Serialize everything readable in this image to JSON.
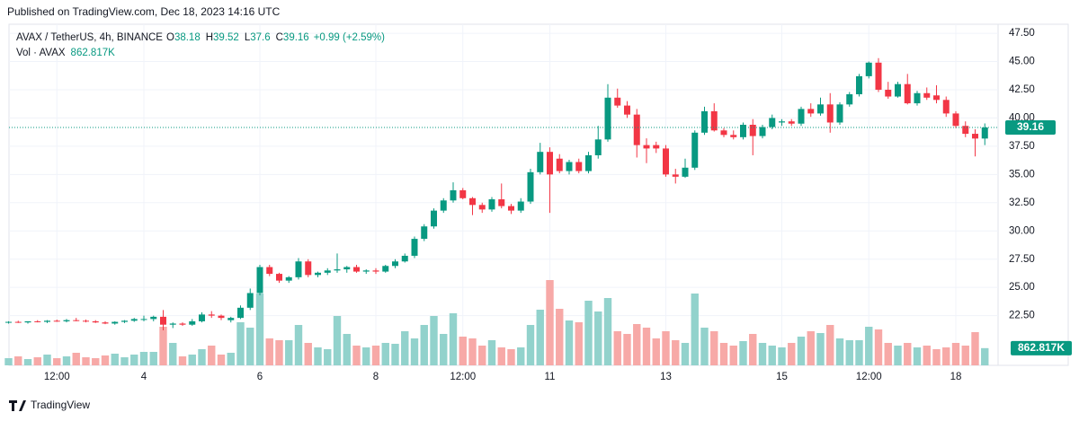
{
  "header": {
    "published": "Published on TradingView.com, Dec 18, 2023 14:16 UTC",
    "footer": "TradingView"
  },
  "chart_data": {
    "type": "candlestick",
    "symbol": "AVAX / TetherUS, 4h, BINANCE",
    "legend_labels": [
      "O",
      "H",
      "L",
      "C"
    ],
    "change_label": "+0.99 (+2.59%)",
    "volume_title": "Vol · AVAX",
    "volume_label": "862.817K",
    "categories": [
      null,
      null,
      null,
      null,
      null,
      "12:00",
      null,
      null,
      null,
      null,
      null,
      null,
      null,
      null,
      "4",
      null,
      null,
      null,
      null,
      null,
      null,
      null,
      null,
      null,
      null,
      null,
      "6",
      null,
      null,
      null,
      null,
      null,
      null,
      null,
      null,
      null,
      null,
      null,
      "8",
      null,
      null,
      null,
      null,
      null,
      null,
      null,
      null,
      "12:00",
      null,
      null,
      null,
      null,
      null,
      null,
      null,
      null,
      "11",
      null,
      null,
      null,
      null,
      null,
      null,
      null,
      null,
      null,
      null,
      null,
      "13",
      null,
      null,
      null,
      null,
      null,
      null,
      null,
      null,
      null,
      null,
      null,
      "15",
      null,
      null,
      null,
      null,
      null,
      null,
      null,
      null,
      "12:00",
      null,
      null,
      null,
      null,
      null,
      null,
      null,
      null,
      "18",
      null,
      null,
      null
    ],
    "open": [
      21.9,
      21.95,
      21.9,
      22.0,
      21.95,
      22.05,
      22.0,
      22.1,
      22.05,
      22.0,
      21.9,
      21.8,
      21.95,
      22.05,
      22.2,
      22.2,
      22.4,
      21.7,
      21.8,
      21.7,
      22.0,
      22.6,
      22.5,
      22.1,
      22.3,
      23.2,
      24.5,
      26.8,
      26.2,
      25.6,
      25.9,
      27.3,
      26.1,
      26.3,
      26.5,
      26.6,
      26.8,
      26.4,
      26.5,
      26.4,
      26.9,
      27.3,
      27.8,
      29.3,
      30.4,
      31.8,
      32.7,
      33.6,
      32.9,
      32.3,
      31.9,
      32.8,
      32.2,
      31.8,
      32.6,
      35.2,
      37.0,
      36.4,
      35.3,
      36.1,
      35.3,
      36.7,
      38.1,
      41.8,
      41.1,
      40.3,
      37.6,
      37.6,
      37.3,
      35.0,
      34.8,
      35.6,
      38.7,
      40.6,
      38.9,
      38.5,
      38.3,
      39.4,
      38.4,
      39.2,
      39.6,
      39.7,
      39.5,
      40.8,
      40.4,
      41.2,
      39.6,
      41.2,
      42.1,
      43.7,
      44.9,
      42.5,
      41.9,
      43.0,
      41.3,
      42.2,
      42.0,
      41.6,
      40.4,
      39.3,
      38.6,
      38.18
    ],
    "high": [
      22.0,
      22.05,
      22.0,
      22.1,
      22.1,
      22.15,
      22.2,
      22.3,
      22.15,
      22.1,
      22.0,
      22.0,
      22.1,
      22.3,
      22.5,
      22.5,
      23.0,
      21.9,
      21.9,
      22.2,
      22.8,
      22.9,
      22.6,
      22.4,
      23.4,
      24.9,
      27.0,
      27.0,
      26.3,
      26.0,
      27.6,
      27.5,
      26.4,
      26.7,
      28.0,
      26.9,
      27.0,
      26.6,
      26.7,
      27.0,
      27.5,
      28.0,
      29.5,
      30.6,
      32.0,
      32.9,
      34.3,
      33.8,
      33.0,
      32.5,
      33.0,
      34.2,
      32.4,
      32.9,
      35.5,
      37.8,
      37.4,
      36.8,
      36.3,
      36.4,
      37.0,
      39.3,
      43.0,
      42.6,
      41.5,
      40.8,
      38.2,
      37.9,
      37.6,
      35.5,
      36.4,
      38.9,
      41.0,
      41.3,
      39.1,
      38.9,
      39.6,
      39.9,
      39.4,
      40.3,
      39.9,
      39.9,
      41.0,
      41.3,
      41.8,
      42.2,
      41.4,
      42.3,
      43.9,
      45.0,
      45.3,
      43.2,
      43.2,
      43.9,
      42.4,
      42.7,
      42.9,
      41.9,
      40.6,
      39.7,
      39.0,
      39.52
    ],
    "low": [
      21.8,
      21.85,
      21.8,
      21.9,
      21.85,
      21.95,
      21.9,
      22.0,
      21.9,
      21.85,
      21.75,
      21.7,
      21.85,
      21.95,
      22.0,
      22.0,
      21.2,
      21.4,
      21.6,
      21.6,
      21.9,
      22.3,
      22.1,
      21.9,
      22.2,
      23.0,
      24.3,
      26.0,
      25.4,
      25.4,
      25.7,
      25.9,
      25.9,
      26.1,
      26.3,
      26.3,
      26.3,
      26.2,
      26.2,
      26.3,
      26.7,
      27.2,
      27.6,
      29.1,
      30.2,
      31.6,
      32.5,
      32.8,
      31.4,
      31.6,
      31.7,
      32.0,
      31.5,
      31.6,
      32.4,
      35.0,
      31.6,
      35.1,
      35.0,
      35.1,
      35.1,
      36.4,
      37.9,
      40.9,
      40.0,
      36.5,
      36.0,
      36.9,
      34.8,
      34.2,
      34.7,
      35.4,
      38.5,
      38.8,
      38.3,
      38.1,
      38.1,
      36.7,
      38.2,
      39.0,
      39.3,
      39.3,
      39.3,
      40.1,
      40.2,
      38.7,
      39.4,
      41.0,
      41.9,
      43.5,
      42.3,
      41.7,
      41.8,
      41.2,
      41.1,
      41.6,
      41.3,
      40.1,
      39.1,
      38.3,
      36.6,
      37.6
    ],
    "close": [
      21.95,
      21.9,
      22.0,
      21.95,
      22.05,
      22.0,
      22.1,
      22.05,
      22.0,
      21.9,
      21.8,
      21.95,
      22.05,
      22.2,
      22.2,
      22.4,
      21.7,
      21.8,
      21.7,
      22.0,
      22.6,
      22.5,
      22.3,
      22.3,
      23.2,
      24.5,
      26.8,
      26.2,
      25.6,
      25.9,
      27.3,
      26.1,
      26.3,
      26.5,
      26.6,
      26.8,
      26.4,
      26.5,
      26.4,
      26.9,
      27.3,
      27.8,
      29.3,
      30.4,
      31.8,
      32.7,
      33.6,
      32.9,
      32.3,
      31.9,
      32.8,
      32.2,
      31.8,
      32.6,
      35.2,
      37.0,
      35.0,
      35.3,
      36.1,
      35.3,
      36.7,
      38.1,
      41.8,
      41.1,
      40.3,
      37.6,
      37.3,
      37.3,
      35.0,
      34.8,
      35.6,
      38.7,
      40.6,
      38.9,
      38.5,
      38.3,
      39.4,
      38.4,
      39.2,
      40.0,
      39.7,
      39.5,
      40.8,
      40.4,
      41.2,
      39.6,
      41.2,
      42.1,
      43.7,
      44.9,
      42.5,
      41.9,
      43.0,
      41.3,
      42.2,
      41.8,
      41.6,
      40.4,
      39.3,
      38.6,
      38.18,
      39.16
    ],
    "volume": [
      360000,
      450000,
      315000,
      405000,
      540000,
      360000,
      450000,
      630000,
      405000,
      360000,
      495000,
      585000,
      405000,
      540000,
      675000,
      675000,
      1935000,
      1125000,
      450000,
      540000,
      810000,
      990000,
      540000,
      630000,
      2160000,
      1890000,
      3600000,
      1350000,
      1260000,
      1260000,
      2025000,
      1125000,
      900000,
      810000,
      2475000,
      1575000,
      990000,
      900000,
      990000,
      1125000,
      1080000,
      1710000,
      1350000,
      2025000,
      2475000,
      1575000,
      2610000,
      1440000,
      1350000,
      990000,
      1260000,
      900000,
      810000,
      900000,
      2025000,
      2790000,
      4275000,
      2835000,
      2250000,
      2160000,
      3240000,
      2700000,
      3375000,
      1710000,
      1575000,
      2070000,
      1890000,
      1350000,
      1710000,
      1260000,
      1125000,
      3600000,
      1890000,
      1710000,
      1125000,
      990000,
      1215000,
      1575000,
      1125000,
      990000,
      900000,
      1125000,
      1440000,
      1710000,
      1620000,
      2025000,
      1350000,
      1260000,
      1260000,
      1935000,
      1800000,
      1125000,
      990000,
      1125000,
      900000,
      990000,
      810000,
      900000,
      1125000,
      990000,
      1665000,
      862817
    ],
    "up_color": "#089981",
    "down_color": "#f23645",
    "up_volume_color": "#92d2cc",
    "down_volume_color": "#f7a9a7",
    "ylim": [
      18.1,
      48.3
    ],
    "yticks": [
      {
        "value": 47.5,
        "label": "47.50"
      },
      {
        "value": 45,
        "label": "45.00"
      },
      {
        "value": 42.5,
        "label": "42.50"
      },
      {
        "value": 40,
        "label": "40.00"
      },
      {
        "value": 37.5,
        "label": "37.50"
      },
      {
        "value": 35,
        "label": "35.00"
      },
      {
        "value": 32.5,
        "label": "32.50"
      },
      {
        "value": 30,
        "label": "30.00"
      },
      {
        "value": 27.5,
        "label": "27.50"
      },
      {
        "value": 25,
        "label": "25.00"
      },
      {
        "value": 22.5,
        "label": "22.50"
      }
    ],
    "grid": true
  }
}
